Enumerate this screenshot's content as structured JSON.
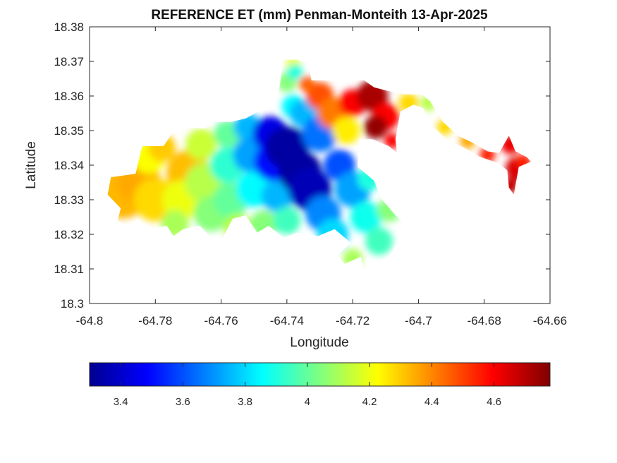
{
  "chart_data": {
    "type": "heatmap",
    "title": "REFERENCE ET (mm) Penman-Monteith 13-Apr-2025",
    "xlabel": "Longitude",
    "ylabel": "Latitude",
    "xlim": [
      -64.8,
      -64.66
    ],
    "ylim": [
      18.3,
      18.38
    ],
    "x_ticks": [
      -64.8,
      -64.78,
      -64.76,
      -64.74,
      -64.72,
      -64.7,
      -64.68,
      -64.66
    ],
    "x_tick_labels": [
      "-64.8",
      "-64.78",
      "-64.76",
      "-64.74",
      "-64.72",
      "-64.7",
      "-64.68",
      "-64.66"
    ],
    "y_ticks": [
      18.3,
      18.31,
      18.32,
      18.33,
      18.34,
      18.35,
      18.36,
      18.37,
      18.38
    ],
    "y_tick_labels": [
      "18.3",
      "18.31",
      "18.32",
      "18.33",
      "18.34",
      "18.35",
      "18.36",
      "18.37",
      "18.38"
    ],
    "colormap": "jet",
    "colorbar": {
      "orientation": "horizontal",
      "placement": "below",
      "clim": [
        3.3,
        4.78
      ],
      "ticks": [
        3.4,
        3.6,
        3.8,
        4.0,
        4.2,
        4.4,
        4.6
      ],
      "tick_labels": [
        "3.4",
        "3.6",
        "3.8",
        "4",
        "4.2",
        "4.4",
        "4.6"
      ]
    },
    "grid": false,
    "field": {
      "description_values": "Estimated reference ET values over land region; NaN (white) outside the island outline",
      "regions": [
        {
          "lon_range": [
            -64.795,
            -64.775
          ],
          "lat_range": [
            18.322,
            18.345
          ],
          "value": 4.32
        },
        {
          "lon_range": [
            -64.775,
            -64.76
          ],
          "lat_range": [
            18.318,
            18.35
          ],
          "value": 4.12
        },
        {
          "lon_range": [
            -64.76,
            -64.75
          ],
          "lat_range": [
            18.318,
            18.352
          ],
          "value": 3.85
        },
        {
          "lon_range": [
            -64.75,
            -64.73
          ],
          "lat_range": [
            18.32,
            18.353
          ],
          "value": 3.4
        },
        {
          "lon_range": [
            -64.73,
            -64.715
          ],
          "lat_range": [
            18.312,
            18.36
          ],
          "value": 3.7
        },
        {
          "lon_range": [
            -64.715,
            -64.705
          ],
          "lat_range": [
            18.35,
            18.365
          ],
          "value": 4.7
        },
        {
          "lon_range": [
            -64.675,
            -64.665
          ],
          "lat_range": [
            18.333,
            18.347
          ],
          "value": 4.65
        }
      ]
    }
  }
}
